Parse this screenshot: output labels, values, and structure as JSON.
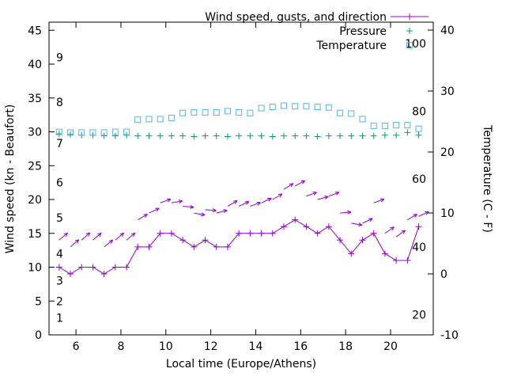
{
  "chart_data": {
    "type": "line",
    "title": "",
    "xlabel": "Local time (Europe/Athens)",
    "ylabel": "Wind speed (kn - Beaufort)",
    "y2label": "Temperature (C - F)",
    "xlim": [
      4.8,
      21.9
    ],
    "ylim": [
      0,
      46.2
    ],
    "y2lim": [
      -10,
      41.3
    ],
    "xticks": [
      6,
      8,
      10,
      12,
      14,
      16,
      18,
      20
    ],
    "yticks": [
      0,
      5,
      10,
      15,
      20,
      25,
      30,
      35,
      40,
      45
    ],
    "y2ticks": [
      -10,
      0,
      10,
      20,
      30,
      40
    ],
    "grid": false,
    "legend_position": "top-right-inside",
    "legend": [
      {
        "label": "Wind speed, gusts, and direction",
        "color": "#9400d3",
        "sample": "line-plus"
      },
      {
        "label": "Pressure",
        "color": "#009e73",
        "sample": "plus"
      },
      {
        "label": "Temperature",
        "color": "#56b4e9",
        "sample": "square"
      }
    ],
    "beaufort_labels": [
      {
        "label": "1",
        "value": 2.5
      },
      {
        "label": "2",
        "value": 5
      },
      {
        "label": "3",
        "value": 8
      },
      {
        "label": "4",
        "value": 12
      },
      {
        "label": "5",
        "value": 17.3
      },
      {
        "label": "6",
        "value": 22.5
      },
      {
        "label": "7",
        "value": 28.3
      },
      {
        "label": "8",
        "value": 34.4
      },
      {
        "label": "9",
        "value": 41
      }
    ],
    "fahrenheit_labels": [
      {
        "label": "20",
        "value_c": -6.7
      },
      {
        "label": "40",
        "value_c": 4.4
      },
      {
        "label": "60",
        "value_c": 15.6
      },
      {
        "label": "80",
        "value_c": 26.7
      },
      {
        "label": "100",
        "value_c": 37.8
      }
    ],
    "x": [
      5.25,
      5.75,
      6.25,
      6.75,
      7.25,
      7.75,
      8.25,
      8.75,
      9.25,
      9.75,
      10.25,
      10.75,
      11.25,
      11.75,
      12.25,
      12.75,
      13.25,
      13.75,
      14.25,
      14.75,
      15.25,
      15.75,
      16.25,
      16.75,
      17.25,
      17.75,
      18.25,
      18.75,
      19.25,
      19.75,
      20.25,
      20.75,
      21.25
    ],
    "series": [
      {
        "name": "wind_speed_kn",
        "axis": "y1",
        "marker": "plus",
        "line": true,
        "color": "#9400d3",
        "values": [
          10,
          9,
          10,
          10,
          9,
          10,
          10,
          13,
          13,
          15,
          15,
          14,
          13,
          14,
          13,
          13,
          15,
          15,
          15,
          15,
          16,
          17,
          16,
          15,
          16,
          14,
          12,
          14,
          15,
          12,
          11,
          11,
          16
        ]
      },
      {
        "name": "wind_gusts_kn",
        "axis": "y1",
        "marker": "arrow",
        "line": false,
        "color": "#9400d3",
        "values": [
          14,
          13,
          14,
          14,
          13,
          14,
          14,
          17,
          18,
          19.5,
          19.5,
          19,
          18,
          18.5,
          18,
          19,
          19,
          19,
          19.5,
          20,
          21.5,
          22,
          20.5,
          20,
          20.5,
          18,
          16.5,
          16.5,
          19.5,
          15,
          14.5,
          17,
          17.5
        ],
        "angles_deg": [
          40,
          40,
          42,
          40,
          38,
          40,
          40,
          30,
          25,
          20,
          10,
          -5,
          -10,
          -5,
          15,
          30,
          25,
          20,
          25,
          30,
          32,
          28,
          20,
          15,
          20,
          5,
          -10,
          25,
          20,
          35,
          35,
          30,
          25
        ]
      },
      {
        "name": "pressure",
        "axis": "y1",
        "marker": "plus",
        "line": false,
        "color": "#009e73",
        "values": [
          29.7,
          29.6,
          29.5,
          29.5,
          29.4,
          29.4,
          29.5,
          29.4,
          29.4,
          29.4,
          29.4,
          29.4,
          29.3,
          29.4,
          29.4,
          29.3,
          29.4,
          29.4,
          29.4,
          29.3,
          29.4,
          29.4,
          29.4,
          29.3,
          29.4,
          29.4,
          29.4,
          29.4,
          29.4,
          29.5,
          29.5,
          29.9,
          29.5
        ]
      },
      {
        "name": "temperature_c",
        "axis": "y2",
        "marker": "square",
        "line": false,
        "color": "#56b4e9",
        "values": [
          23.3,
          23.2,
          23.2,
          23.2,
          23.2,
          23.3,
          23.3,
          25.3,
          25.4,
          25.4,
          25.6,
          26.4,
          26.5,
          26.5,
          26.5,
          26.7,
          26.5,
          26.4,
          27.2,
          27.4,
          27.6,
          27.5,
          27.5,
          27.4,
          27.3,
          26.4,
          26.3,
          25.4,
          24.3,
          24.3,
          24.4,
          24.4,
          23.8
        ]
      }
    ]
  }
}
